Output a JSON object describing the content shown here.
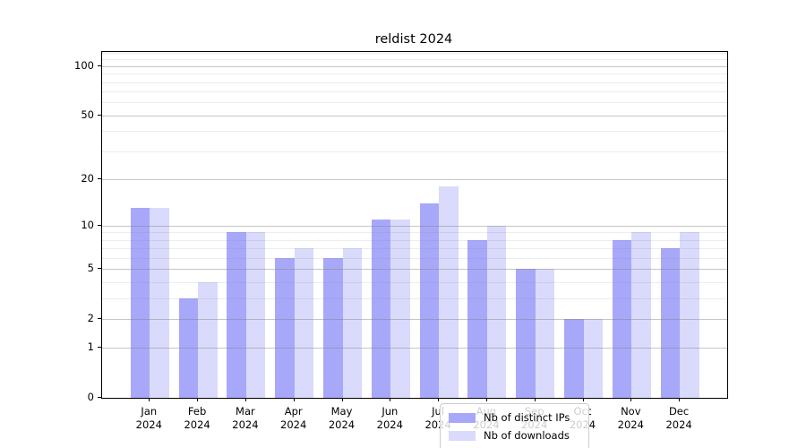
{
  "title": "reldist 2024",
  "colors": {
    "distinct_ips": "#a8a8fa",
    "downloads": "#dadafc",
    "grid_major": "rgba(128,128,128,0.45)",
    "grid_minor": "rgba(128,128,128,0.15)",
    "axis": "#000000"
  },
  "legend": {
    "items": [
      {
        "label": "Nb of distinct IPs",
        "color": "#a8a8fa"
      },
      {
        "label": "Nb of downloads",
        "color": "#dadafc"
      }
    ]
  },
  "chart_data": {
    "type": "bar",
    "title": "reldist 2024",
    "xlabel": "",
    "ylabel": "",
    "categories": [
      "Jan 2024",
      "Feb 2024",
      "Mar 2024",
      "Apr 2024",
      "May 2024",
      "Jun 2024",
      "Jul 2024",
      "Aug 2024",
      "Sep 2024",
      "Oct 2024",
      "Nov 2024",
      "Dec 2024"
    ],
    "month_labels": [
      "Jan",
      "Feb",
      "Mar",
      "Apr",
      "May",
      "Jun",
      "Jul",
      "Aug",
      "Sep",
      "Oct",
      "Nov",
      "Dec"
    ],
    "year_label": "2024",
    "series": [
      {
        "name": "Nb of distinct IPs",
        "color": "#a8a8fa",
        "values": [
          13,
          3,
          9,
          6,
          6,
          11,
          14,
          8,
          5,
          2,
          8,
          7
        ]
      },
      {
        "name": "Nb of downloads",
        "color": "#dadafc",
        "values": [
          13,
          4,
          9,
          7,
          7,
          11,
          18,
          10,
          5,
          2,
          9,
          9
        ]
      }
    ],
    "yscale": "log1p",
    "ylim": [
      0,
      122
    ],
    "yticks": [
      0,
      1,
      2,
      5,
      10,
      20,
      50,
      100
    ],
    "minor_yticks": [
      3,
      4,
      6,
      7,
      8,
      9,
      30,
      40,
      60,
      70,
      80,
      90,
      110,
      120
    ],
    "grid": true,
    "legend_position": "lower center"
  }
}
